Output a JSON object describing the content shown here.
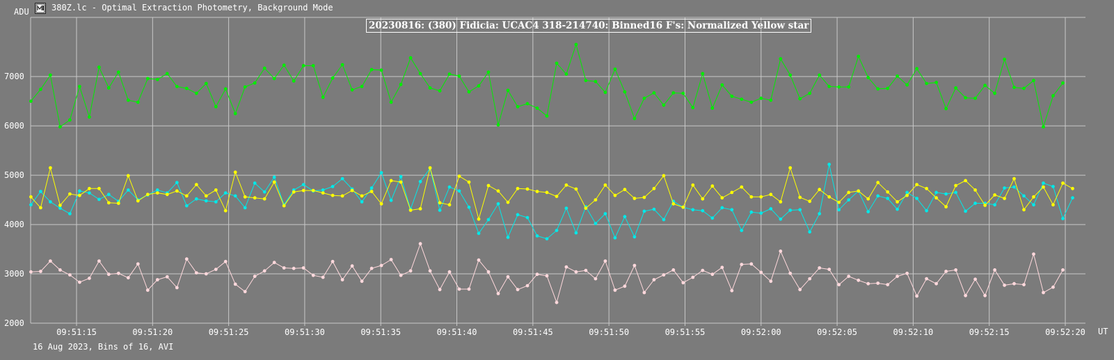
{
  "window": {
    "icon": "app-window-icon",
    "title": "380Z.lc - Optimal Extraction Photometry, Background Mode"
  },
  "footer": "16 Aug 2023, Bins of 16, AVI",
  "chart_data": {
    "type": "line",
    "title": "20230816: (380) Fidicia: UCAC4 318-214740: Binned16 F's: Normalized Yellow star",
    "ylabel": "ADU",
    "xlabel": "UT",
    "ylim": [
      2000,
      8200
    ],
    "yticks": [
      2000,
      3000,
      4000,
      5000,
      6000,
      7000
    ],
    "xtick_labels": [
      "09:51:15",
      "09:51:20",
      "09:51:25",
      "09:51:30",
      "09:51:35",
      "09:51:40",
      "09:51:45",
      "09:51:50",
      "09:51:55",
      "09:52:00",
      "09:52:05",
      "09:52:10",
      "09:52:15",
      "09:52:20"
    ],
    "x_start": "09:51:12",
    "x_step_seconds": 0.64,
    "grid": true,
    "background": "#7b7b7b",
    "series": [
      {
        "color": "#00ee00",
        "values": [
          6500,
          6740,
          7030,
          5980,
          6120,
          6800,
          6180,
          7190,
          6770,
          7090,
          6520,
          6480,
          6960,
          6940,
          7060,
          6800,
          6760,
          6660,
          6860,
          6390,
          6750,
          6250,
          6790,
          6870,
          7170,
          6960,
          7230,
          6910,
          7220,
          7220,
          6580,
          6970,
          7240,
          6730,
          6800,
          7140,
          7130,
          6480,
          6840,
          7380,
          7060,
          6770,
          6710,
          7050,
          7010,
          6690,
          6810,
          7090,
          6020,
          6720,
          6390,
          6450,
          6360,
          6200,
          7270,
          7050,
          7650,
          6920,
          6900,
          6680,
          7150,
          6690,
          6150,
          6560,
          6670,
          6420,
          6670,
          6660,
          6370,
          7060,
          6360,
          6830,
          6600,
          6540,
          6480,
          6560,
          6520,
          7360,
          7030,
          6550,
          6660,
          7030,
          6800,
          6790,
          6790,
          7410,
          6980,
          6750,
          6760,
          7010,
          6830,
          7160,
          6860,
          6880,
          6350,
          6770,
          6570,
          6560,
          6820,
          6660,
          7350,
          6780,
          6760,
          6920,
          5980,
          6610,
          6870
        ]
      },
      {
        "color": "#00e8e8",
        "values": [
          4400,
          4670,
          4460,
          4330,
          4220,
          4680,
          4640,
          4510,
          4610,
          4470,
          4700,
          4500,
          4600,
          4700,
          4640,
          4850,
          4380,
          4520,
          4480,
          4460,
          4640,
          4580,
          4340,
          4840,
          4660,
          4960,
          4400,
          4700,
          4810,
          4680,
          4700,
          4770,
          4930,
          4720,
          4460,
          4740,
          5050,
          4490,
          4970,
          4310,
          4870,
          5140,
          4290,
          4760,
          4680,
          4350,
          3820,
          4100,
          4420,
          3740,
          4200,
          4140,
          3770,
          3710,
          3880,
          4330,
          3830,
          4360,
          4020,
          4220,
          3730,
          4160,
          3750,
          4270,
          4310,
          4100,
          4470,
          4350,
          4300,
          4280,
          4130,
          4340,
          4300,
          3880,
          4250,
          4230,
          4320,
          4110,
          4290,
          4300,
          3850,
          4220,
          5220,
          4300,
          4500,
          4680,
          4260,
          4580,
          4530,
          4310,
          4650,
          4530,
          4280,
          4650,
          4620,
          4650,
          4270,
          4430,
          4430,
          4400,
          4740,
          4760,
          4580,
          4400,
          4840,
          4770,
          4120,
          4540
        ]
      },
      {
        "color": "#ffff00",
        "values": [
          4560,
          4340,
          5150,
          4390,
          4620,
          4590,
          4730,
          4730,
          4440,
          4430,
          4990,
          4480,
          4610,
          4640,
          4610,
          4680,
          4580,
          4810,
          4580,
          4700,
          4280,
          5060,
          4560,
          4540,
          4520,
          4860,
          4380,
          4660,
          4690,
          4690,
          4640,
          4590,
          4580,
          4690,
          4580,
          4670,
          4420,
          4890,
          4860,
          4290,
          4320,
          5150,
          4440,
          4400,
          4980,
          4860,
          4110,
          4790,
          4680,
          4450,
          4730,
          4720,
          4670,
          4650,
          4570,
          4800,
          4720,
          4330,
          4500,
          4800,
          4590,
          4710,
          4530,
          4550,
          4730,
          4990,
          4420,
          4350,
          4800,
          4520,
          4780,
          4540,
          4650,
          4760,
          4560,
          4560,
          4610,
          4460,
          5150,
          4550,
          4470,
          4710,
          4560,
          4450,
          4650,
          4680,
          4520,
          4850,
          4660,
          4460,
          4590,
          4810,
          4730,
          4540,
          4360,
          4790,
          4890,
          4700,
          4390,
          4600,
          4530,
          4930,
          4300,
          4560,
          4760,
          4400,
          4840,
          4730
        ]
      },
      {
        "color": "#ffd8dc",
        "values": [
          3040,
          3050,
          3260,
          3080,
          2980,
          2830,
          2910,
          3260,
          2990,
          3010,
          2920,
          3200,
          2670,
          2880,
          2940,
          2720,
          3300,
          3020,
          3000,
          3090,
          3250,
          2790,
          2640,
          2950,
          3060,
          3230,
          3120,
          3110,
          3120,
          2970,
          2930,
          3250,
          2880,
          3160,
          2850,
          3110,
          3170,
          3290,
          2970,
          3060,
          3610,
          3060,
          2680,
          3040,
          2690,
          2690,
          3280,
          3040,
          2600,
          2940,
          2680,
          2760,
          2990,
          2960,
          2420,
          3140,
          3040,
          3070,
          2900,
          3260,
          2670,
          2750,
          3170,
          2620,
          2880,
          2980,
          3080,
          2820,
          2930,
          3070,
          2990,
          3130,
          2660,
          3190,
          3200,
          3030,
          2850,
          3460,
          3010,
          2680,
          2900,
          3120,
          3090,
          2780,
          2950,
          2870,
          2800,
          2810,
          2780,
          2950,
          3010,
          2550,
          2900,
          2800,
          3050,
          3080,
          2560,
          2890,
          2560,
          3080,
          2770,
          2800,
          2780,
          3400,
          2620,
          2730,
          3080
        ]
      }
    ]
  }
}
